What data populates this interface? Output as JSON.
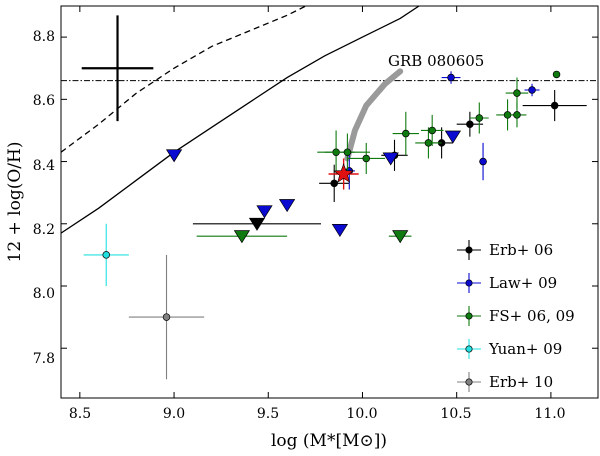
{
  "chart_data": {
    "type": "scatter",
    "xlabel": "log (M*[M⊙])",
    "ylabel": "12 + log(O/H)",
    "xlim": [
      8.4,
      11.25
    ],
    "ylim": [
      7.64,
      8.9
    ],
    "xticks": [
      8.5,
      9.0,
      9.5,
      10.0,
      10.5,
      11.0
    ],
    "yticks": [
      7.8,
      8.0,
      8.2,
      8.4,
      8.6,
      8.8
    ],
    "xtick_labels": [
      "8.5",
      "9.0",
      "9.5",
      "10.0",
      "10.5",
      "11.0"
    ],
    "ytick_labels": [
      "7.8",
      "8.0",
      "8.2",
      "8.4",
      "8.6",
      "8.8"
    ],
    "reference_line": {
      "y": 8.66,
      "style": "dash-dot"
    },
    "representative_error": {
      "x": 8.7,
      "y": 8.7,
      "xerr": 0.19,
      "yerr": 0.17
    },
    "relations": {
      "solid": [
        [
          8.4,
          8.17
        ],
        [
          8.6,
          8.25
        ],
        [
          8.8,
          8.34
        ],
        [
          9.0,
          8.43
        ],
        [
          9.2,
          8.51
        ],
        [
          9.4,
          8.59
        ],
        [
          9.6,
          8.67
        ],
        [
          9.8,
          8.74
        ],
        [
          10.0,
          8.8
        ],
        [
          10.2,
          8.86
        ],
        [
          10.3,
          8.9
        ]
      ],
      "dashed": [
        [
          8.4,
          8.43
        ],
        [
          8.6,
          8.52
        ],
        [
          8.8,
          8.62
        ],
        [
          9.0,
          8.7
        ],
        [
          9.2,
          8.77
        ],
        [
          9.4,
          8.82
        ],
        [
          9.6,
          8.87
        ],
        [
          9.7,
          8.9
        ]
      ]
    },
    "grb_track": {
      "label": "GRB 080605",
      "points": [
        [
          9.92,
          8.41
        ],
        [
          9.96,
          8.5
        ],
        [
          10.02,
          8.58
        ],
        [
          10.12,
          8.65
        ],
        [
          10.2,
          8.69
        ]
      ],
      "marker": {
        "x": 9.9,
        "y": 8.36,
        "xerr": 0.08,
        "yerr": 0.05,
        "color": "#e01010"
      }
    },
    "series": [
      {
        "name": "Erb+ 06",
        "color": "#000000",
        "points": [
          {
            "x": 9.85,
            "y": 8.33,
            "xerr": 0.08,
            "yerr": 0.06
          },
          {
            "x": 10.17,
            "y": 8.42,
            "xerr": 0.07,
            "yerr": 0.05
          },
          {
            "x": 10.42,
            "y": 8.46,
            "xerr": 0.06,
            "yerr": 0.05
          },
          {
            "x": 10.57,
            "y": 8.52,
            "xerr": 0.07,
            "yerr": 0.04
          },
          {
            "x": 11.02,
            "y": 8.58,
            "xerr": 0.17,
            "yerr": 0.05
          }
        ],
        "limits": [
          {
            "x": 9.44,
            "y": 8.2,
            "xerr": 0.34
          }
        ]
      },
      {
        "name": "Law+ 09",
        "color": "#0a0ad0",
        "points": [
          {
            "x": 9.93,
            "y": 8.37,
            "xerr": 0.03,
            "yerr": 0.06
          },
          {
            "x": 10.47,
            "y": 8.67,
            "xerr": 0.05,
            "yerr": 0.02
          },
          {
            "x": 10.64,
            "y": 8.4,
            "xerr": 0.02,
            "yerr": 0.06
          },
          {
            "x": 10.9,
            "y": 8.63,
            "xerr": 0.04,
            "yerr": 0.02
          }
        ],
        "limits": [
          {
            "x": 9.0,
            "y": 8.42,
            "xerr": 0.0
          },
          {
            "x": 9.48,
            "y": 8.24,
            "xerr": 0.0
          },
          {
            "x": 9.6,
            "y": 8.26,
            "xerr": 0.0
          },
          {
            "x": 9.88,
            "y": 8.18,
            "xerr": 0.0
          },
          {
            "x": 10.15,
            "y": 8.41,
            "xerr": 0.0
          },
          {
            "x": 10.48,
            "y": 8.48,
            "xerr": 0.0
          }
        ]
      },
      {
        "name": "FS+ 06, 09",
        "color": "#0f7a0f",
        "points": [
          {
            "x": 9.86,
            "y": 8.43,
            "xerr": 0.1,
            "yerr": 0.07
          },
          {
            "x": 9.92,
            "y": 8.43,
            "xerr": 0.12,
            "yerr": 0.06
          },
          {
            "x": 10.02,
            "y": 8.41,
            "xerr": 0.1,
            "yerr": 0.05
          },
          {
            "x": 10.23,
            "y": 8.49,
            "xerr": 0.07,
            "yerr": 0.07
          },
          {
            "x": 10.35,
            "y": 8.46,
            "xerr": 0.07,
            "yerr": 0.05
          },
          {
            "x": 10.37,
            "y": 8.5,
            "xerr": 0.06,
            "yerr": 0.05
          },
          {
            "x": 10.62,
            "y": 8.54,
            "xerr": 0.05,
            "yerr": 0.05
          },
          {
            "x": 10.77,
            "y": 8.55,
            "xerr": 0.06,
            "yerr": 0.05
          },
          {
            "x": 10.82,
            "y": 8.62,
            "xerr": 0.06,
            "yerr": 0.05
          },
          {
            "x": 10.82,
            "y": 8.55,
            "xerr": 0.05,
            "yerr": 0.04
          },
          {
            "x": 11.03,
            "y": 8.68,
            "xerr": 0.0,
            "yerr": 0.0
          }
        ],
        "limits": [
          {
            "x": 9.36,
            "y": 8.16,
            "xerr": 0.24
          },
          {
            "x": 10.2,
            "y": 8.16,
            "xerr": 0.06
          }
        ]
      },
      {
        "name": "Yuan+ 09",
        "color": "#22e0e0",
        "points": [
          {
            "x": 8.64,
            "y": 8.1,
            "xerr": 0.12,
            "yerr": 0.1
          }
        ],
        "limits": []
      },
      {
        "name": "Erb+ 10",
        "color": "#808080",
        "points": [
          {
            "x": 8.96,
            "y": 7.9,
            "xerr": 0.2,
            "yerr": 0.2
          }
        ],
        "limits": []
      }
    ],
    "legend": {
      "position": "lower-right",
      "entries": [
        "Erb+ 06",
        "Law+ 09",
        "FS+ 06, 09",
        "Yuan+ 09",
        "Erb+ 10"
      ]
    }
  }
}
